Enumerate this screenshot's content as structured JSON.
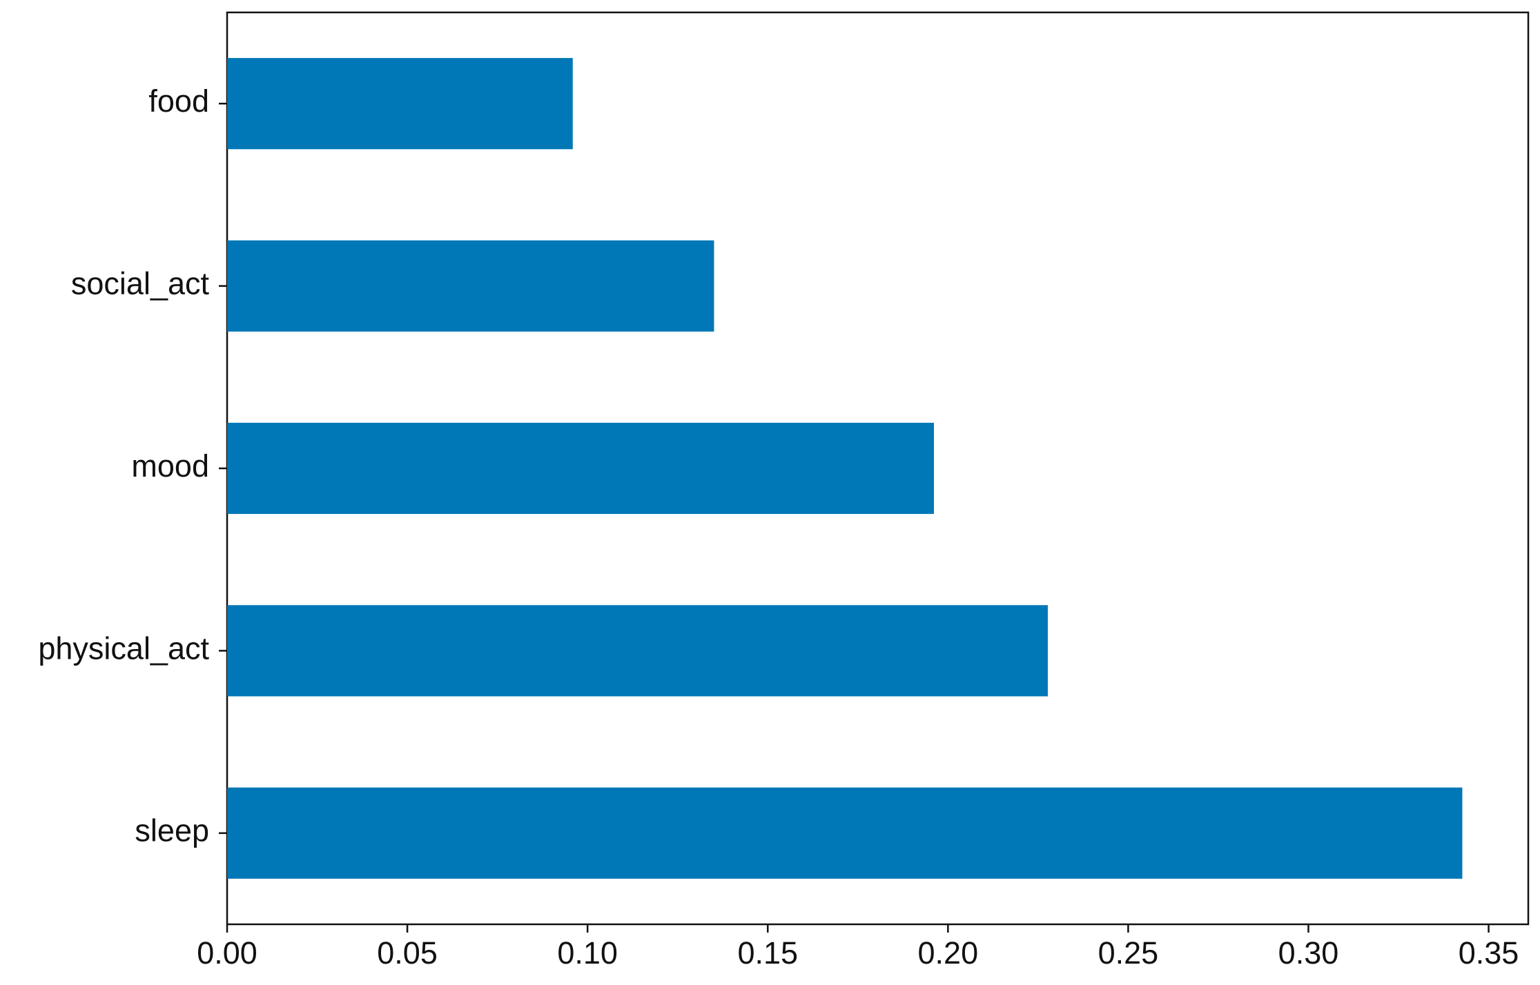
{
  "chart_data": {
    "type": "barh",
    "categories": [
      "sleep",
      "physical_act",
      "mood",
      "social_act",
      "food"
    ],
    "values": [
      0.3427,
      0.2277,
      0.1961,
      0.1351,
      0.0959
    ],
    "color": "#0077b6",
    "xlim": [
      0,
      0.361
    ],
    "xticks": [
      {
        "value": 0,
        "label": "0.00"
      },
      {
        "value": 0.05,
        "label": "0.05"
      },
      {
        "value": 0.1,
        "label": "0.10"
      },
      {
        "value": 0.15,
        "label": "0.15"
      },
      {
        "value": 0.2,
        "label": "0.20"
      },
      {
        "value": 0.25,
        "label": "0.25"
      },
      {
        "value": 0.3,
        "label": "0.30"
      },
      {
        "value": 0.35,
        "label": "0.35"
      }
    ],
    "grid": false
  }
}
